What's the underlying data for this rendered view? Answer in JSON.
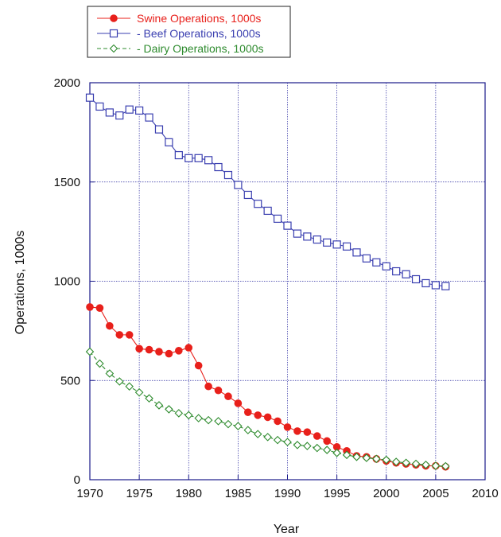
{
  "chart_data": {
    "type": "line",
    "xlabel": "Year",
    "ylabel": "Operations, 1000s",
    "xlim": [
      1970,
      2010
    ],
    "ylim": [
      0,
      2000
    ],
    "x_ticks": [
      "1970",
      "1975",
      "1980",
      "1985",
      "1990",
      "1995",
      "2000",
      "2005",
      "2010"
    ],
    "y_ticks": [
      "0",
      "500",
      "1000",
      "1500",
      "2000"
    ],
    "grid": true,
    "legend_position": "top-left",
    "x": [
      1970,
      1971,
      1972,
      1973,
      1974,
      1975,
      1976,
      1977,
      1978,
      1979,
      1980,
      1981,
      1982,
      1983,
      1984,
      1985,
      1986,
      1987,
      1988,
      1989,
      1990,
      1991,
      1992,
      1993,
      1994,
      1995,
      1996,
      1997,
      1998,
      1999,
      2000,
      2001,
      2002,
      2003,
      2004,
      2005,
      2006
    ],
    "series": [
      {
        "name": "Swine Operations, 1000s",
        "color": "#e8201b",
        "marker": "filled-circle",
        "line": "solid",
        "values": [
          870,
          865,
          775,
          730,
          730,
          660,
          655,
          645,
          635,
          650,
          665,
          575,
          470,
          450,
          420,
          385,
          340,
          325,
          315,
          295,
          265,
          245,
          240,
          220,
          195,
          165,
          145,
          120,
          115,
          105,
          95,
          85,
          80,
          75,
          70,
          70,
          65
        ]
      },
      {
        "name": "- Beef Operations, 1000s",
        "color": "#3a3fb0",
        "marker": "open-square",
        "line": "solid",
        "values": [
          1925,
          1880,
          1850,
          1835,
          1865,
          1860,
          1825,
          1765,
          1700,
          1635,
          1620,
          1620,
          1610,
          1575,
          1535,
          1485,
          1435,
          1390,
          1355,
          1315,
          1280,
          1240,
          1225,
          1210,
          1195,
          1185,
          1175,
          1145,
          1115,
          1095,
          1075,
          1050,
          1035,
          1010,
          990,
          980,
          975
        ]
      },
      {
        "name": "- Dairy Operations, 1000s",
        "color": "#2e8b2e",
        "marker": "open-diamond",
        "line": "dashed",
        "values": [
          645,
          585,
          535,
          495,
          470,
          440,
          410,
          375,
          355,
          335,
          325,
          310,
          300,
          295,
          280,
          270,
          250,
          230,
          215,
          200,
          190,
          175,
          170,
          160,
          150,
          135,
          125,
          115,
          110,
          105,
          100,
          90,
          85,
          80,
          75,
          70,
          68
        ]
      }
    ]
  }
}
